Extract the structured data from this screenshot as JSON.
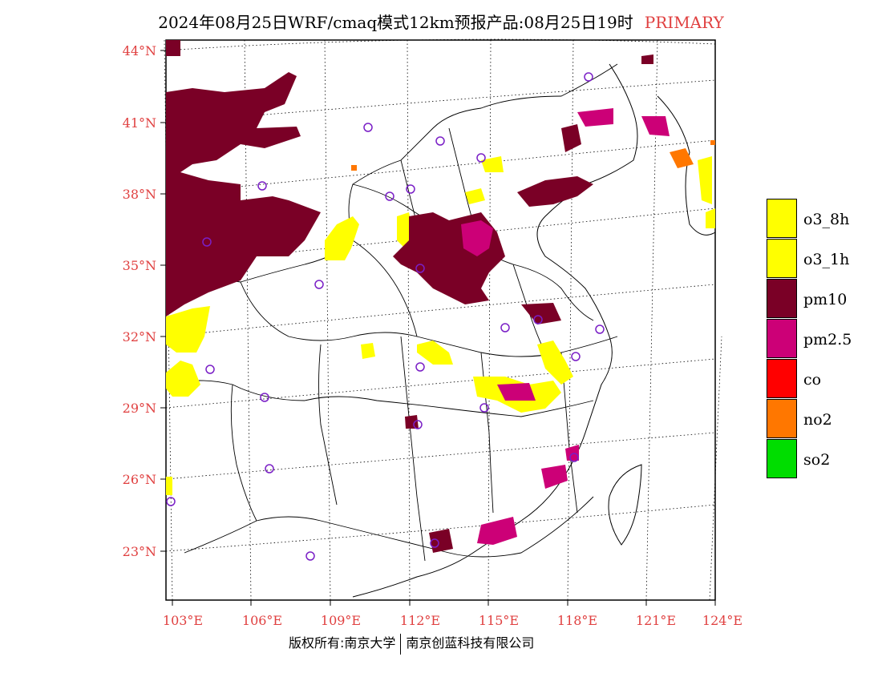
{
  "title": {
    "main": "2024年08月25日WRF/cmaq模式12km预报产品:08月25日19时",
    "tag": "PRIMARY"
  },
  "axes": {
    "lat_labels": [
      "44°N",
      "41°N",
      "38°N",
      "35°N",
      "32°N",
      "29°N",
      "26°N",
      "23°N"
    ],
    "lon_labels": [
      "103°E",
      "106°E",
      "109°E",
      "112°E",
      "115°E",
      "118°E",
      "121°E",
      "124°E"
    ],
    "label_color": "#e04040"
  },
  "legend": [
    {
      "label": "o3_8h",
      "color": "#ffff00"
    },
    {
      "label": "o3_1h",
      "color": "#ffff00"
    },
    {
      "label": "pm10",
      "color": "#7a0026"
    },
    {
      "label": "pm2.5",
      "color": "#cc0077"
    },
    {
      "label": "co",
      "color": "#ff0000"
    },
    {
      "label": "no2",
      "color": "#ff7700"
    },
    {
      "label": "so2",
      "color": "#00dd00"
    }
  ],
  "copyright": {
    "left": "版权所有:南京大学",
    "right": "南京创蓝科技有限公司"
  }
}
